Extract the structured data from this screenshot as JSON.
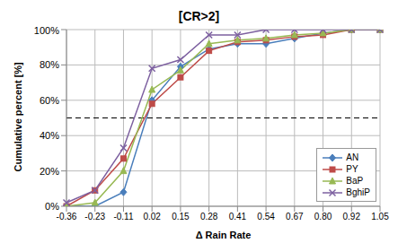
{
  "chart_data": {
    "type": "line",
    "title": "[CR>2]",
    "x_label": "Δ Rain Rate",
    "y_label": "Cumulative percent [%]",
    "categories": [
      "-0.36",
      "-0.23",
      "-0.11",
      "0.02",
      "0.15",
      "0.28",
      "0.41",
      "0.54",
      "0.67",
      "0.80",
      "0.92",
      "1.05"
    ],
    "series": [
      {
        "name": "AN",
        "color": "#4a7ebb",
        "marker": "diamond",
        "values": [
          0,
          0,
          8,
          60,
          79,
          89,
          92,
          92,
          95,
          98,
          100,
          100
        ]
      },
      {
        "name": "PY",
        "color": "#be4b48",
        "marker": "square",
        "values": [
          0,
          9,
          27,
          58,
          73,
          88,
          93,
          94,
          96,
          97,
          100,
          100
        ]
      },
      {
        "name": "BaP",
        "color": "#98b954",
        "marker": "triangle",
        "values": [
          0,
          2,
          20,
          66,
          77,
          92,
          94,
          95,
          97,
          98,
          100,
          100
        ]
      },
      {
        "name": "BghiP",
        "color": "#7d60a0",
        "marker": "x",
        "values": [
          2,
          9,
          33,
          78,
          83,
          97,
          97,
          100,
          100,
          100,
          100,
          100
        ]
      }
    ],
    "ylim": [
      0,
      100
    ],
    "yticks": [
      {
        "value": 0,
        "label": "0%"
      },
      {
        "value": 20,
        "label": "20%"
      },
      {
        "value": 40,
        "label": "40%"
      },
      {
        "value": 60,
        "label": "60%"
      },
      {
        "value": 80,
        "label": "80%"
      },
      {
        "value": 100,
        "label": "100%"
      }
    ],
    "hline": 50,
    "grid": true,
    "legend": "bottom-right"
  }
}
